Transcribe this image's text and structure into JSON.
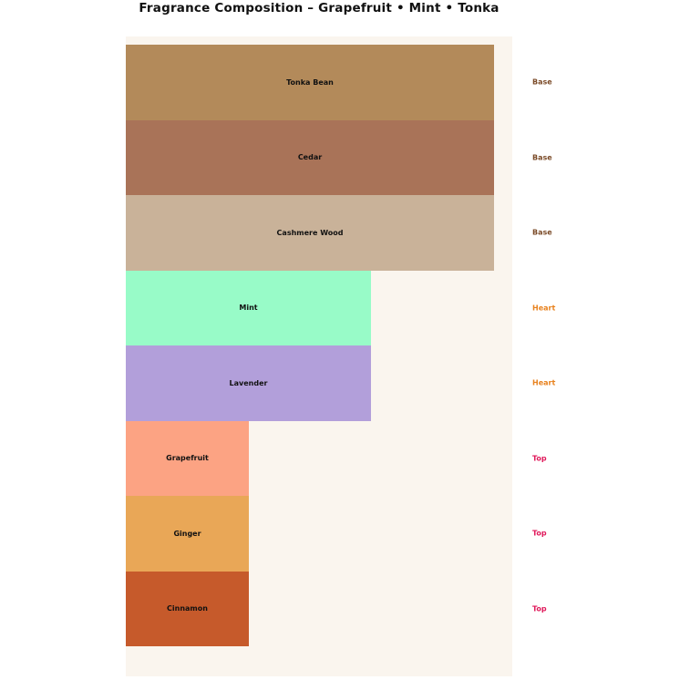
{
  "title": "Fragrance Composition – Grapefruit • Mint • Tonka",
  "colors": {
    "page_bg": "#ffffff",
    "plot_bg": "#faf5ee",
    "title_text": "#111111",
    "bar_label_text": "#111111"
  },
  "chart_data": {
    "type": "bar",
    "orientation": "horizontal",
    "title": "Fragrance Composition – Grapefruit • Mint • Tonka",
    "xlabel": "",
    "ylabel": "",
    "xlim": [
      0,
      3.15
    ],
    "grid": false,
    "legend": false,
    "axes_visible": false,
    "categories": [
      "Tonka Bean",
      "Cedar",
      "Cashmere Wood",
      "Mint",
      "Lavender",
      "Grapefruit",
      "Ginger",
      "Cinnamon"
    ],
    "items": [
      {
        "name": "Tonka Bean",
        "category": "Base",
        "value": 3,
        "color": "#b38a5a"
      },
      {
        "name": "Cedar",
        "category": "Base",
        "value": 3,
        "color": "#a97358"
      },
      {
        "name": "Cashmere Wood",
        "category": "Base",
        "value": 3,
        "color": "#c9b299"
      },
      {
        "name": "Mint",
        "category": "Heart",
        "value": 2,
        "color": "#98fbc8"
      },
      {
        "name": "Lavender",
        "category": "Heart",
        "value": 2,
        "color": "#b29fda"
      },
      {
        "name": "Grapefruit",
        "category": "Top",
        "value": 1,
        "color": "#fca383"
      },
      {
        "name": "Ginger",
        "category": "Top",
        "value": 1,
        "color": "#e9a757"
      },
      {
        "name": "Cinnamon",
        "category": "Top",
        "value": 1,
        "color": "#c65a2b"
      }
    ],
    "category_labels": [
      "Base",
      "Base",
      "Base",
      "Heart",
      "Heart",
      "Top",
      "Top",
      "Top"
    ],
    "category_colors": {
      "Base": "#7b4b28",
      "Heart": "#e8821e",
      "Top": "#e0185a"
    },
    "category_label_position": "right"
  }
}
